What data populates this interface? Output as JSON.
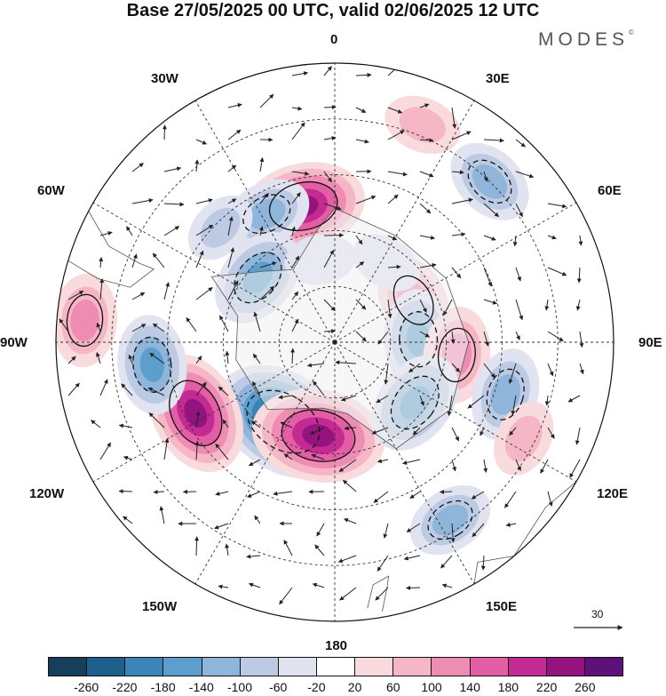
{
  "title": "Base 27/05/2025 00 UTC, valid 02/06/2025 12 UTC",
  "brand": "MODES",
  "brand_mark": "©",
  "longitude_labels": {
    "lon_0": "0",
    "lon_30e": "30E",
    "lon_60e": "60E",
    "lon_90e": "90E",
    "lon_120e": "120E",
    "lon_150e": "150E",
    "lon_180": "180",
    "lon_150w": "150W",
    "lon_120w": "120W",
    "lon_90w": "90W",
    "lon_60w": "60W",
    "lon_30w": "30W"
  },
  "colorbar": {
    "colors": [
      "#163f5c",
      "#1f5f8b",
      "#3a84b9",
      "#5c9fcd",
      "#8fb6da",
      "#bccbe3",
      "#e1e3f1",
      "#ffffff",
      "#f9dadd",
      "#f5b6c6",
      "#ef8cb4",
      "#e35ea5",
      "#c42b92",
      "#94137f",
      "#5e1279"
    ],
    "tick_labels": [
      "-260",
      "-220",
      "-180",
      "-140",
      "-100",
      "-60",
      "-20",
      "20",
      "60",
      "100",
      "140",
      "180",
      "220",
      "260"
    ]
  },
  "vector_reference": "30",
  "anomalies": [
    {
      "lat_deg": -73,
      "lon_deg": -147,
      "value": -280
    },
    {
      "lat_deg": -73,
      "lon_deg": -170,
      "value": 250
    },
    {
      "lat_deg": -62,
      "lon_deg": -117,
      "value": 220
    },
    {
      "lat_deg": -65,
      "lon_deg": -13,
      "value": 220
    },
    {
      "lat_deg": -64,
      "lon_deg": -28,
      "value": -110
    },
    {
      "lat_deg": -72,
      "lon_deg": -50,
      "value": -150
    },
    {
      "lat_deg": -45,
      "lon_deg": -85,
      "value": 120
    },
    {
      "lat_deg": -57,
      "lon_deg": -97,
      "value": -140
    },
    {
      "lat_deg": -74,
      "lon_deg": 62,
      "value": 120
    },
    {
      "lat_deg": -75,
      "lon_deg": 88,
      "value": -140
    },
    {
      "lat_deg": -68,
      "lon_deg": 96,
      "value": 130
    },
    {
      "lat_deg": -58,
      "lon_deg": 107,
      "value": -120
    },
    {
      "lat_deg": -72,
      "lon_deg": 127,
      "value": -160
    },
    {
      "lat_deg": -52,
      "lon_deg": 117,
      "value": 70
    },
    {
      "lat_deg": -52,
      "lon_deg": 147,
      "value": -100
    },
    {
      "lat_deg": -48,
      "lon_deg": 22,
      "value": 70
    },
    {
      "lat_deg": -50,
      "lon_deg": 44,
      "value": -110
    },
    {
      "lat_deg": -73,
      "lon_deg": 33,
      "value": -50
    },
    {
      "lat_deg": -75,
      "lon_deg": -10,
      "value": -50
    },
    {
      "lat_deg": -61,
      "lon_deg": -45,
      "value": -60
    }
  ]
}
